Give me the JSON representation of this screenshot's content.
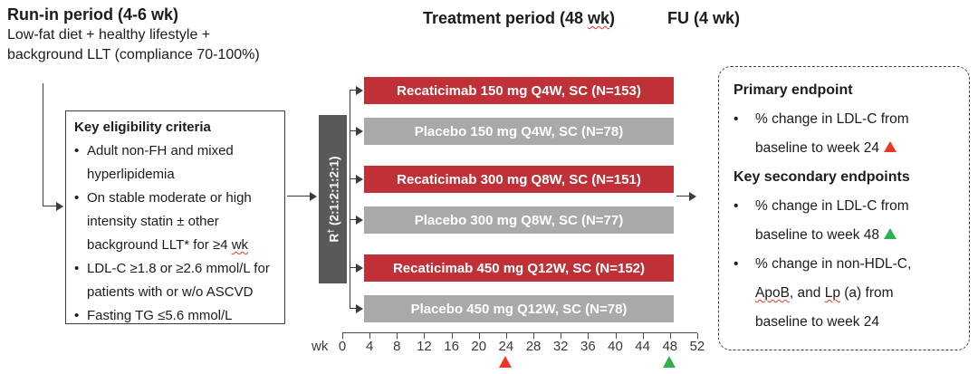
{
  "ui": {
    "bullet_char": "•"
  },
  "headers": {
    "run_in_title": "Run-in period (4-6 wk)",
    "run_in_sub_line1": "Low-fat diet + healthy lifestyle +",
    "run_in_sub_line2": "background LLT (compliance 70-100%)",
    "treatment_title_pre": "Treatment period (48 ",
    "treatment_title_wk": "wk",
    "treatment_title_post": ")",
    "fu_title": "FU (4 wk)"
  },
  "eligibility": {
    "title": "Key eligibility criteria",
    "bullet1": "Adult non-FH and mixed hyperlipidemia",
    "bullet2_pre": "On stable moderate or high intensity statin ± other background LLT* for ≥4 ",
    "bullet2_wk": "wk",
    "bullet3": "LDL-C ≥1.8 or ≥2.6 mmol/L for patients with or w/o ASCVD",
    "bullet4": "Fasting TG ≤5.6 mmol/L"
  },
  "randomization": {
    "label_r": "R",
    "label_sup": "†",
    "label_ratio": " (2:1:2:1:2:1)"
  },
  "arms": [
    {
      "label": "Recaticimab 150 mg Q4W, SC (N=153)",
      "type": "recaticimab"
    },
    {
      "label": "Placebo 150 mg Q4W, SC (N=78)",
      "type": "placebo"
    },
    {
      "label": "Recaticimab 300 mg Q8W, SC (N=151)",
      "type": "recaticimab"
    },
    {
      "label": "Placebo 300 mg Q8W, SC (N=77)",
      "type": "placebo"
    },
    {
      "label": "Recaticimab 450 mg Q12W, SC (N=152)",
      "type": "recaticimab"
    },
    {
      "label": "Placebo 450 mg Q12W, SC (N=78)",
      "type": "placebo"
    }
  ],
  "axis": {
    "unit": "wk",
    "ticks": [
      "0",
      "4",
      "8",
      "12",
      "16",
      "20",
      "24",
      "28",
      "32",
      "36",
      "40",
      "44",
      "48",
      "52"
    ],
    "marker_red_week": "24",
    "marker_green_week": "48"
  },
  "endpoints": {
    "primary_title": "Primary endpoint",
    "primary_bullet_text": "% change in LDL-C from baseline to week 24",
    "secondary_title": "Key secondary endpoints",
    "secondary_bullet1_text": "% change in LDL-C from baseline to week 48",
    "secondary_bullet2_seg1": "% change in non-HDL-C, ",
    "secondary_bullet2_seg2": "ApoB",
    "secondary_bullet2_seg3": ", and ",
    "secondary_bullet2_seg4": "Lp",
    "secondary_bullet2_seg5": " (a) from baseline to week 24"
  },
  "colors": {
    "recaticimab_red": "#bf3136",
    "placebo_gray": "#a8a9ab",
    "randomization_gray": "#58595b",
    "marker_red": "#ee3524",
    "marker_green": "#2eb04f"
  }
}
